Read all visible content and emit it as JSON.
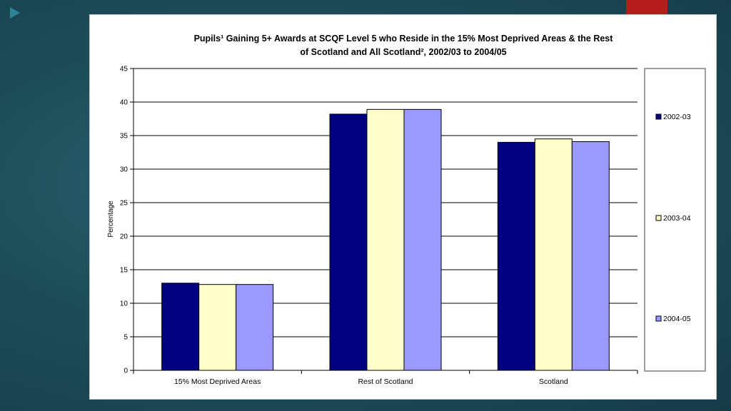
{
  "colors": {
    "background": "#1d4d59",
    "accent": "#b51d1d",
    "arrow": "#2a8596",
    "series": [
      "#000080",
      "#ffffcc",
      "#9999ff"
    ]
  },
  "chart_data": {
    "type": "bar",
    "title_line1": "Pupils¹ Gaining 5+ Awards at SCQF Level 5 who Reside in the 15% Most Deprived Areas &  the Rest",
    "title_line2": "of Scotland and All Scotland², 2002/03 to 2004/05",
    "xlabel": "",
    "ylabel": "Percentage",
    "ylim": [
      0,
      45
    ],
    "yticks": [
      0,
      5,
      10,
      15,
      20,
      25,
      30,
      35,
      40,
      45
    ],
    "grid": true,
    "legend_position": "right",
    "categories": [
      "15% Most Deprived Areas",
      "Rest of Scotland",
      "Scotland"
    ],
    "series": [
      {
        "name": "2002-03",
        "color": "#000080",
        "values": [
          13.0,
          38.2,
          34.0
        ]
      },
      {
        "name": "2003-04",
        "color": "#ffffcc",
        "values": [
          12.8,
          38.9,
          34.5
        ]
      },
      {
        "name": "2004-05",
        "color": "#9999ff",
        "values": [
          12.8,
          38.9,
          34.1
        ]
      }
    ]
  }
}
